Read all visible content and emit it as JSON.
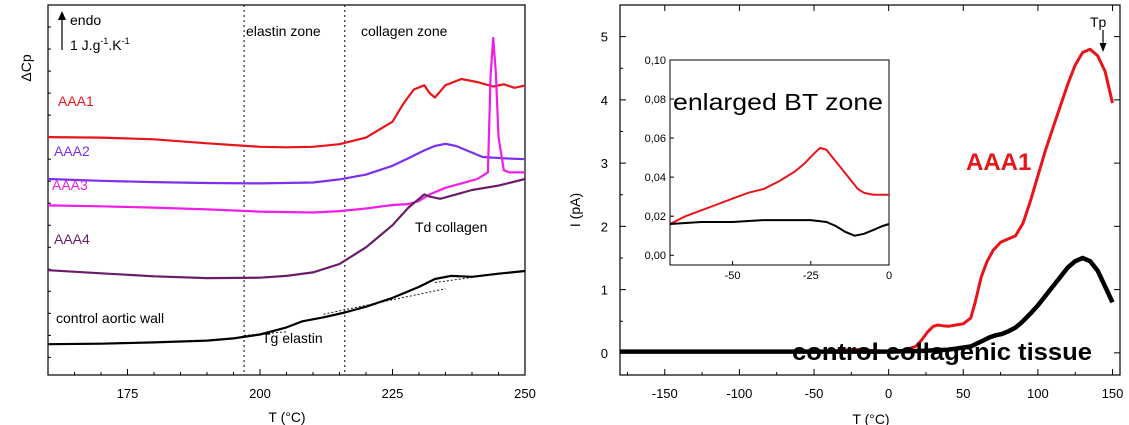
{
  "chart_data": [
    {
      "type": "line",
      "xlabel": "T (°C)",
      "ylabel": "ΔCp",
      "xlim": [
        160,
        250
      ],
      "xticks": [
        "175",
        "200",
        "225",
        "250"
      ],
      "yticks": "unlabeled",
      "annotations": {
        "endo": "endo",
        "scale": "1 J.g",
        "scale_sup1": "-1",
        "scale_mid": ".K",
        "scale_sup2": "-1",
        "elastin_zone": "elastin zone",
        "collagen_zone": "collagen zone",
        "td_collagen": "Td collagen",
        "tg_elastin": "Tg elastin"
      },
      "zone_boundaries": [
        197,
        216
      ],
      "series": [
        {
          "name": "AAA1",
          "color": "#e8141a",
          "x": [
            160,
            170,
            180,
            190,
            200,
            205,
            210,
            215,
            220,
            225,
            227,
            229,
            231,
            232,
            233,
            235,
            238,
            241,
            244,
            246,
            248,
            250
          ],
          "y": [
            0.7,
            0.699,
            0.695,
            0.686,
            0.678,
            0.677,
            0.678,
            0.684,
            0.699,
            0.735,
            0.775,
            0.808,
            0.818,
            0.8,
            0.79,
            0.818,
            0.832,
            0.825,
            0.815,
            0.82,
            0.812,
            0.817
          ]
        },
        {
          "name": "AAA2",
          "color": "#7b2ff0",
          "x": [
            160,
            170,
            180,
            190,
            200,
            210,
            215,
            220,
            225,
            228,
            231,
            233,
            235,
            237,
            239,
            242,
            246,
            250
          ],
          "y": [
            0.605,
            0.601,
            0.598,
            0.596,
            0.595,
            0.597,
            0.604,
            0.615,
            0.635,
            0.652,
            0.67,
            0.68,
            0.685,
            0.68,
            0.67,
            0.655,
            0.652,
            0.65
          ],
          "label_display": "AAA2"
        },
        {
          "name": "AAA3",
          "color": "#ee1ee8",
          "x": [
            160,
            170,
            180,
            190,
            200,
            210,
            215,
            220,
            225,
            228,
            230,
            232,
            235,
            238,
            241,
            243,
            243.5,
            244,
            244.5,
            245,
            246,
            247,
            250
          ],
          "y": [
            0.545,
            0.543,
            0.54,
            0.536,
            0.531,
            0.529,
            0.532,
            0.538,
            0.546,
            0.548,
            0.555,
            0.57,
            0.585,
            0.595,
            0.605,
            0.62,
            0.84,
            0.925,
            0.845,
            0.7,
            0.625,
            0.62,
            0.62
          ],
          "label_display": "AAA3"
        },
        {
          "name": "AAA4",
          "color": "#6a1c6a",
          "x": [
            160,
            170,
            180,
            190,
            200,
            205,
            210,
            215,
            220,
            225,
            228,
            230,
            231,
            232,
            234,
            237,
            240,
            245,
            250
          ],
          "y": [
            0.398,
            0.391,
            0.384,
            0.38,
            0.381,
            0.385,
            0.393,
            0.412,
            0.45,
            0.5,
            0.54,
            0.56,
            0.57,
            0.565,
            0.56,
            0.57,
            0.58,
            0.59,
            0.605
          ]
        },
        {
          "name": "control aortic wall",
          "color": "#000000",
          "x": [
            160,
            170,
            180,
            190,
            195,
            200,
            205,
            208,
            212,
            216,
            220,
            225,
            230,
            233,
            236,
            240,
            245,
            250
          ],
          "y": [
            0.23,
            0.231,
            0.234,
            0.238,
            0.243,
            0.252,
            0.268,
            0.282,
            0.291,
            0.302,
            0.315,
            0.335,
            0.36,
            0.378,
            0.385,
            0.383,
            0.39,
            0.396
          ]
        }
      ],
      "tangents": [
        {
          "x": [
            212,
            235
          ],
          "y": [
            0.298,
            0.356
          ]
        },
        {
          "x": [
            233,
            249
          ],
          "y": [
            0.37,
            0.396
          ]
        },
        {
          "x": [
            197,
            205
          ],
          "y": [
            0.25,
            0.258
          ]
        }
      ],
      "ylim": [
        0.16,
        1.0
      ]
    },
    {
      "type": "line",
      "xlabel": "T (°C)",
      "ylabel": "I (pA)",
      "xlim": [
        -180,
        155
      ],
      "ylim": [
        -0.35,
        5.5
      ],
      "xticks": [
        "-150",
        "-100",
        "-50",
        "0",
        "50",
        "100",
        "150"
      ],
      "yticks": [
        "0",
        "1",
        "2",
        "3",
        "4",
        "5"
      ],
      "annotations": {
        "tp": "Tp",
        "aaa1_label": "AAA1",
        "control_label": "control collagenic tissue"
      },
      "series": [
        {
          "name": "AAA1",
          "color": "#e8141a",
          "x": [
            -180,
            -100,
            -50,
            -40,
            -30,
            -22,
            -15,
            -5,
            0,
            10,
            18,
            22,
            26,
            30,
            33,
            36,
            40,
            45,
            50,
            55,
            58,
            62,
            66,
            70,
            75,
            80,
            85,
            90,
            95,
            100,
            105,
            110,
            115,
            120,
            125,
            130,
            135,
            140,
            145,
            150
          ],
          "y": [
            0.02,
            0.02,
            0.025,
            0.03,
            0.04,
            0.055,
            0.04,
            0.03,
            0.03,
            0.04,
            0.1,
            0.2,
            0.33,
            0.42,
            0.44,
            0.43,
            0.42,
            0.44,
            0.46,
            0.55,
            0.8,
            1.2,
            1.45,
            1.62,
            1.75,
            1.8,
            1.85,
            2.05,
            2.4,
            2.8,
            3.2,
            3.55,
            3.9,
            4.25,
            4.55,
            4.75,
            4.8,
            4.7,
            4.45,
            3.95
          ]
        },
        {
          "name": "control collagenic tissue",
          "color": "#000000",
          "x": [
            -180,
            -100,
            -50,
            0,
            20,
            40,
            55,
            62,
            68,
            72,
            76,
            80,
            85,
            90,
            95,
            100,
            105,
            110,
            115,
            120,
            125,
            130,
            135,
            140,
            145,
            150
          ],
          "y": [
            0.02,
            0.02,
            0.02,
            0.02,
            0.03,
            0.05,
            0.1,
            0.18,
            0.25,
            0.28,
            0.3,
            0.34,
            0.4,
            0.5,
            0.62,
            0.75,
            0.9,
            1.05,
            1.2,
            1.35,
            1.45,
            1.5,
            1.45,
            1.3,
            1.05,
            0.8
          ]
        }
      ],
      "inset": {
        "title": "enlarged BT zone",
        "xlim": [
          -70,
          0
        ],
        "ylim": [
          -0.005,
          0.1
        ],
        "xticks": [
          "-50",
          "-25",
          "0"
        ],
        "yticks": [
          "0,00",
          "0,02",
          "0,04",
          "0,06",
          "0,08",
          "0,10"
        ],
        "series": [
          {
            "color": "#e8141a",
            "x": [
              -70,
              -65,
              -60,
              -55,
              -50,
              -45,
              -40,
              -35,
              -30,
              -27,
              -24,
              -22,
              -20,
              -18,
              -15,
              -12,
              -10,
              -8,
              -5,
              -3,
              0
            ],
            "y": [
              0.016,
              0.02,
              0.023,
              0.026,
              0.029,
              0.032,
              0.034,
              0.038,
              0.043,
              0.047,
              0.052,
              0.055,
              0.054,
              0.05,
              0.044,
              0.038,
              0.034,
              0.032,
              0.031,
              0.031,
              0.031
            ]
          },
          {
            "color": "#000000",
            "x": [
              -70,
              -60,
              -50,
              -40,
              -30,
              -25,
              -20,
              -17,
              -14,
              -11,
              -8,
              -5,
              -2,
              0
            ],
            "y": [
              0.016,
              0.017,
              0.017,
              0.018,
              0.018,
              0.018,
              0.017,
              0.015,
              0.012,
              0.01,
              0.011,
              0.013,
              0.015,
              0.016
            ]
          }
        ]
      }
    }
  ]
}
